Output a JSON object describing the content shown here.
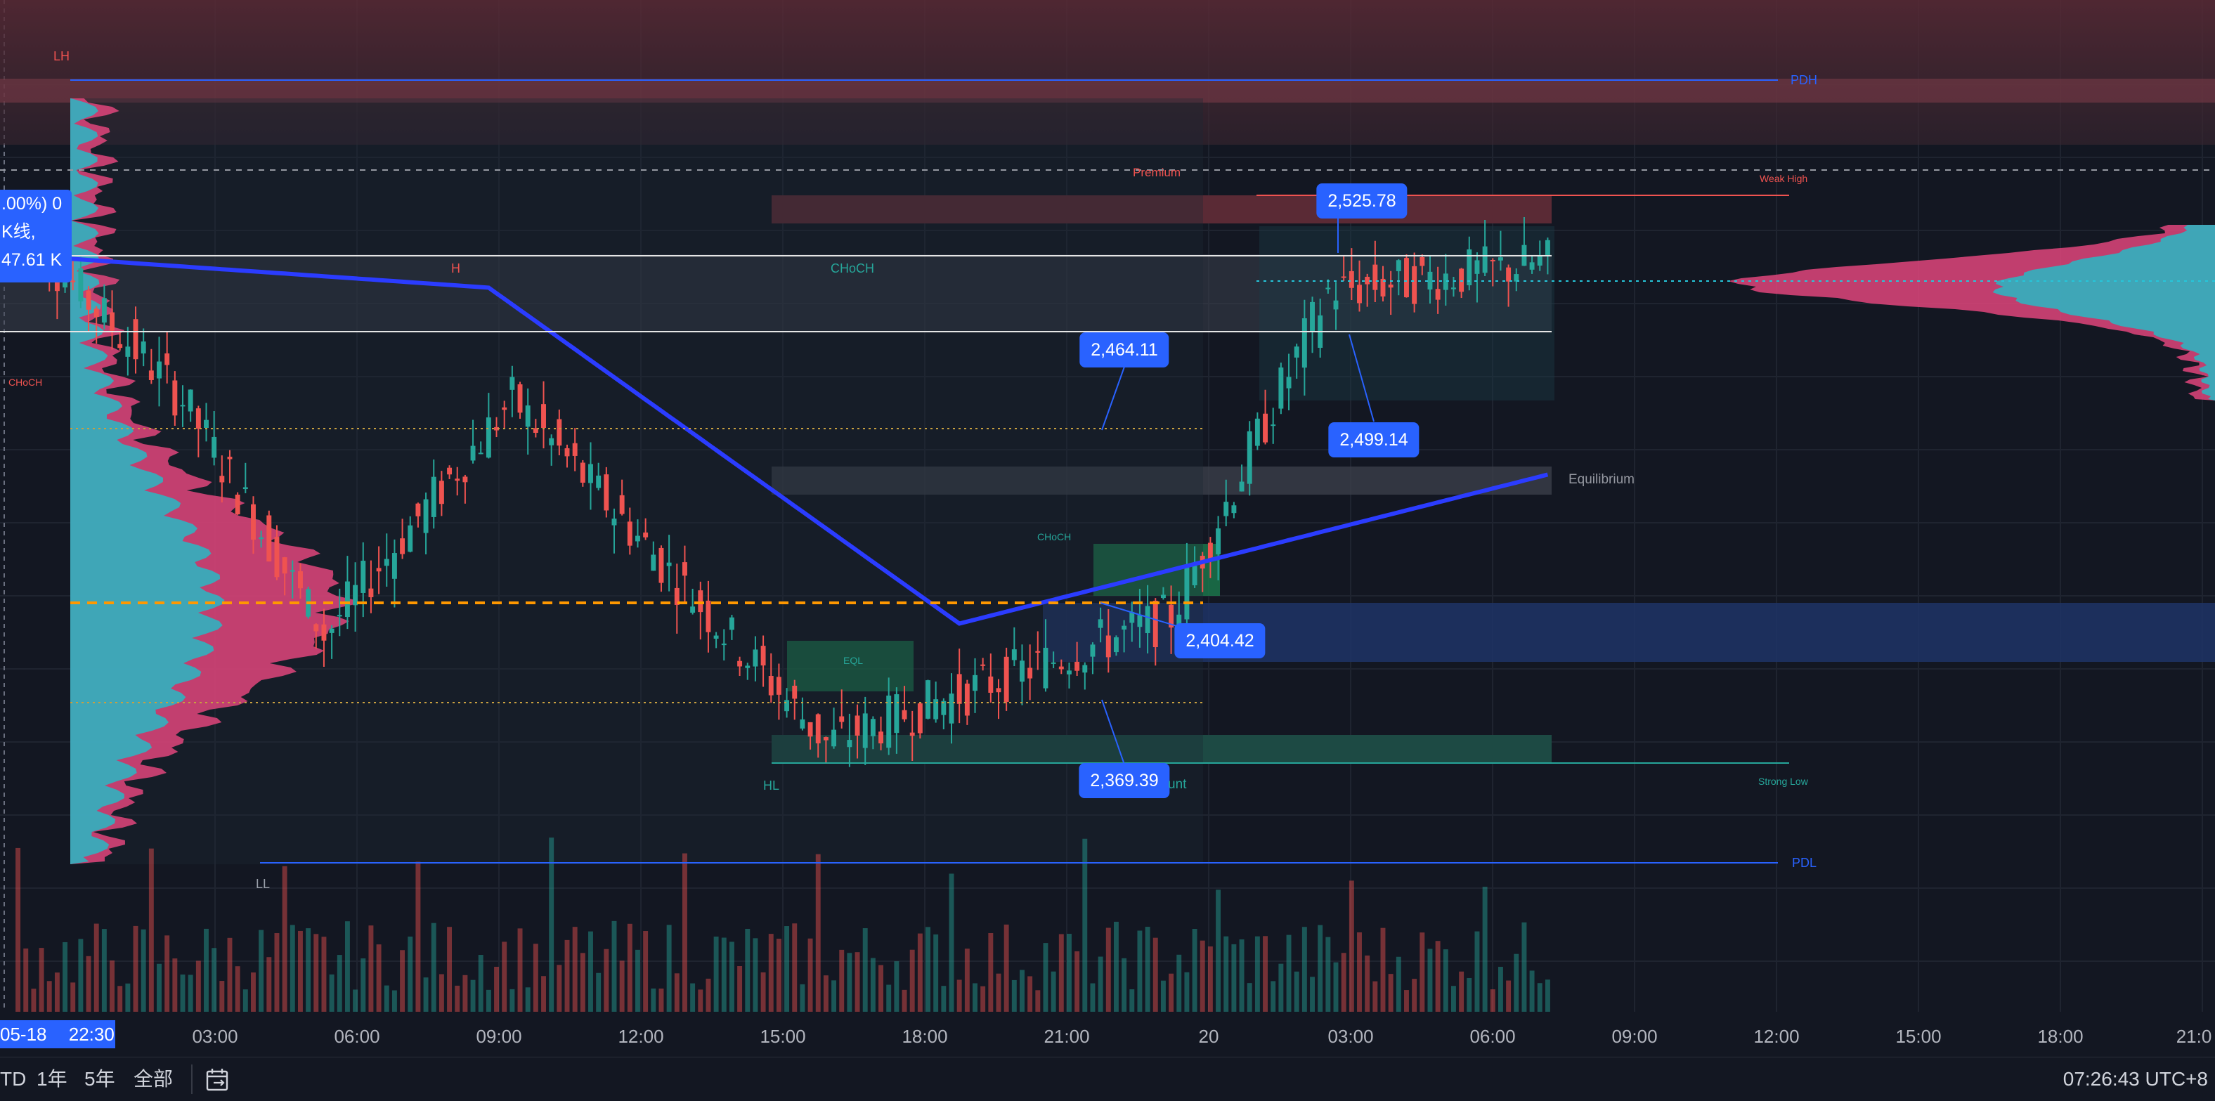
{
  "colors": {
    "background": "#131722",
    "up": "#26a69a",
    "down": "#ef5350",
    "vwap": "#2b3cff",
    "accent": "#2962ff",
    "premium_zone": "#5a2a35",
    "discount_zone": "#1d4a44",
    "poc": "#ff9800"
  },
  "chart_data": {
    "type": "candlestick",
    "subtype": "smart-money-concepts overlay with volume profile and volume pane",
    "x_tick_labels": [
      "03:00",
      "06:00",
      "09:00",
      "12:00",
      "15:00",
      "18:00",
      "21:00",
      "20",
      "03:00",
      "06:00",
      "09:00",
      "12:00",
      "15:00",
      "18:00",
      "21:0"
    ],
    "current_time_badge": [
      "05-18",
      "22:30"
    ],
    "price_callouts": [
      "2,525.78",
      "2,464.11",
      "2,499.14",
      "2,404.42",
      "2,369.39"
    ],
    "legend_partial": [
      ".00%) 0",
      "K线,",
      "47.61 K"
    ],
    "annotations": {
      "lh": "LH",
      "h": "H",
      "hl": "HL",
      "ll": "LL",
      "pdh": "PDH",
      "pdl": "PDL",
      "premium": "Premium",
      "weak_high": "Weak High",
      "strong_low": "Strong Low",
      "choch_main": "CHoCH",
      "choch_small": "CHoCH",
      "choch_left": "CHoCH",
      "eql": "EQL",
      "equilibrium": "Equilibrium",
      "discount_fragment": "unt"
    },
    "price_levels": {
      "weak_high": 2525.78,
      "callout_a": 2464.11,
      "callout_b": 2499.14,
      "callout_c": 2404.42,
      "strong_low": 2369.39
    },
    "segments": [
      {
        "n": 22,
        "from": 2520,
        "to": 2470
      },
      {
        "n": 18,
        "from": 2470,
        "to": 2405
      },
      {
        "n": 24,
        "from": 2405,
        "to": 2470
      },
      {
        "n": 40,
        "from": 2470,
        "to": 2375
      },
      {
        "n": 44,
        "from": 2375,
        "to": 2410
      },
      {
        "n": 20,
        "from": 2410,
        "to": 2500
      },
      {
        "n": 28,
        "from": 2500,
        "to": 2508
      }
    ],
    "grid": true,
    "volume_pane": true,
    "volume_profile": true
  },
  "bottom_bar": {
    "ranges": [
      "TD",
      "1年",
      "5年",
      "全部"
    ],
    "compare_icon": "calendar-range-icon",
    "clock": "07:26:43 UTC+8"
  }
}
